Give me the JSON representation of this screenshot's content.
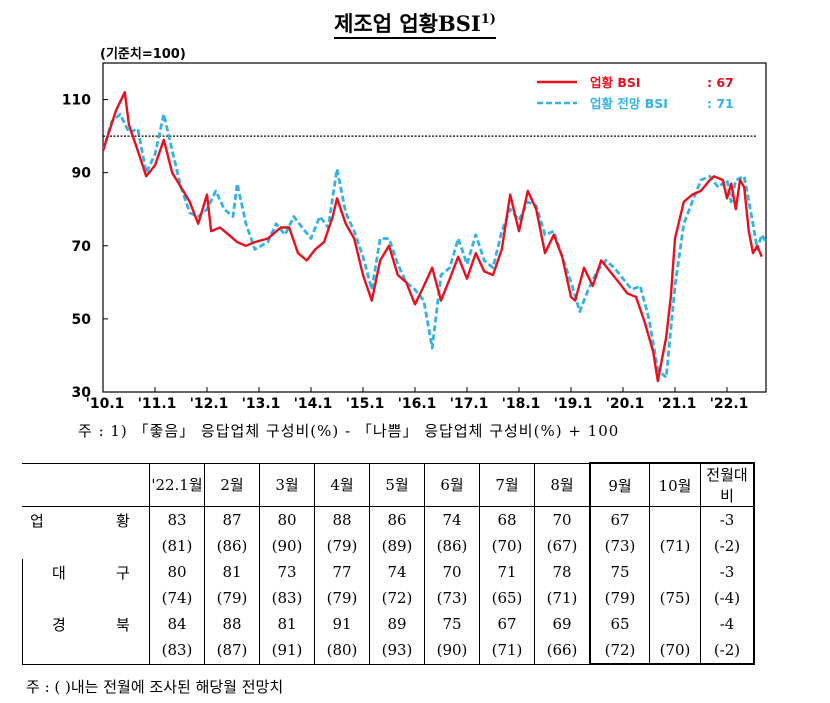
{
  "title": "제조업 업황BSI",
  "title_sup": "1)",
  "base_label": "(기준치=100)",
  "note_chart": "주 : 1) 「좋음」 응답업체 구성비(%) - 「나쁨」 응답업체 구성비(%) + 100",
  "note_table": "주 : (     )내는 전월에 조사된 해당월 전망치",
  "chart_data": {
    "type": "line",
    "ylim": [
      30,
      120
    ],
    "yticks": [
      30,
      50,
      70,
      90,
      110
    ],
    "xlim": [
      2010.0,
      2022.75
    ],
    "x_tick_labels": [
      "'10.1",
      "'11.1",
      "'12.1",
      "'13.1",
      "'14.1",
      "'15.1",
      "'16.1",
      "'17.1",
      "'18.1",
      "'19.1",
      "'20.1",
      "'21.1",
      "'22.1"
    ],
    "x_tick_positions": [
      2010,
      2011,
      2012,
      2013,
      2014,
      2015,
      2016,
      2017,
      2018,
      2019,
      2020,
      2021,
      2022
    ],
    "reference_line": 100,
    "legend_position": "top-right",
    "series": [
      {
        "name": "업황 BSI",
        "legend_value": ": 67",
        "color": "#e8101c",
        "style": "solid",
        "points": [
          [
            2010.0,
            96
          ],
          [
            2010.25,
            107
          ],
          [
            2010.42,
            112
          ],
          [
            2010.5,
            103
          ],
          [
            2010.67,
            96
          ],
          [
            2010.83,
            89
          ],
          [
            2011.0,
            92
          ],
          [
            2011.17,
            99
          ],
          [
            2011.33,
            90
          ],
          [
            2011.5,
            86
          ],
          [
            2011.67,
            82
          ],
          [
            2011.83,
            76
          ],
          [
            2012.0,
            84
          ],
          [
            2012.08,
            74
          ],
          [
            2012.25,
            75
          ],
          [
            2012.42,
            73
          ],
          [
            2012.58,
            71
          ],
          [
            2012.75,
            70
          ],
          [
            2012.92,
            71
          ],
          [
            2013.17,
            72
          ],
          [
            2013.42,
            75
          ],
          [
            2013.58,
            75
          ],
          [
            2013.75,
            68
          ],
          [
            2013.92,
            66
          ],
          [
            2014.08,
            69
          ],
          [
            2014.25,
            71
          ],
          [
            2014.42,
            78
          ],
          [
            2014.5,
            83
          ],
          [
            2014.67,
            76
          ],
          [
            2014.83,
            72
          ],
          [
            2015.0,
            62
          ],
          [
            2015.17,
            55
          ],
          [
            2015.33,
            66
          ],
          [
            2015.5,
            70
          ],
          [
            2015.67,
            62
          ],
          [
            2015.83,
            60
          ],
          [
            2016.0,
            54
          ],
          [
            2016.17,
            59
          ],
          [
            2016.33,
            64
          ],
          [
            2016.5,
            55
          ],
          [
            2016.67,
            61
          ],
          [
            2016.83,
            67
          ],
          [
            2017.0,
            61
          ],
          [
            2017.17,
            68
          ],
          [
            2017.33,
            63
          ],
          [
            2017.5,
            62
          ],
          [
            2017.67,
            69
          ],
          [
            2017.83,
            84
          ],
          [
            2018.0,
            74
          ],
          [
            2018.17,
            85
          ],
          [
            2018.33,
            80
          ],
          [
            2018.5,
            68
          ],
          [
            2018.67,
            73
          ],
          [
            2018.83,
            67
          ],
          [
            2019.0,
            56
          ],
          [
            2019.08,
            55
          ],
          [
            2019.25,
            64
          ],
          [
            2019.42,
            59
          ],
          [
            2019.58,
            66
          ],
          [
            2019.75,
            63
          ],
          [
            2019.92,
            60
          ],
          [
            2020.08,
            57
          ],
          [
            2020.25,
            56
          ],
          [
            2020.42,
            49
          ],
          [
            2020.58,
            41
          ],
          [
            2020.67,
            33
          ],
          [
            2020.83,
            45
          ],
          [
            2020.92,
            56
          ],
          [
            2021.0,
            72
          ],
          [
            2021.17,
            82
          ],
          [
            2021.33,
            84
          ],
          [
            2021.5,
            85
          ],
          [
            2021.67,
            88
          ],
          [
            2021.75,
            89
          ],
          [
            2021.92,
            88
          ],
          [
            2022.0,
            83
          ],
          [
            2022.08,
            87
          ],
          [
            2022.17,
            80
          ],
          [
            2022.25,
            88
          ],
          [
            2022.33,
            86
          ],
          [
            2022.42,
            74
          ],
          [
            2022.5,
            68
          ],
          [
            2022.58,
            70
          ],
          [
            2022.67,
            67
          ]
        ]
      },
      {
        "name": "업황 전망 BSI",
        "legend_value": ": 71",
        "color": "#35b2e5",
        "style": "dashed",
        "points": [
          [
            2010.0,
            96
          ],
          [
            2010.17,
            104
          ],
          [
            2010.33,
            106
          ],
          [
            2010.5,
            101
          ],
          [
            2010.67,
            102
          ],
          [
            2010.83,
            90
          ],
          [
            2011.0,
            95
          ],
          [
            2011.17,
            106
          ],
          [
            2011.33,
            96
          ],
          [
            2011.5,
            86
          ],
          [
            2011.67,
            79
          ],
          [
            2011.83,
            78
          ],
          [
            2012.0,
            80
          ],
          [
            2012.17,
            85
          ],
          [
            2012.33,
            80
          ],
          [
            2012.5,
            78
          ],
          [
            2012.58,
            87
          ],
          [
            2012.75,
            76
          ],
          [
            2012.92,
            69
          ],
          [
            2013.17,
            71
          ],
          [
            2013.33,
            76
          ],
          [
            2013.5,
            73
          ],
          [
            2013.67,
            78
          ],
          [
            2013.83,
            75
          ],
          [
            2014.0,
            72
          ],
          [
            2014.17,
            78
          ],
          [
            2014.33,
            75
          ],
          [
            2014.5,
            91
          ],
          [
            2014.67,
            79
          ],
          [
            2014.83,
            74
          ],
          [
            2015.0,
            67
          ],
          [
            2015.17,
            58
          ],
          [
            2015.33,
            72
          ],
          [
            2015.5,
            72
          ],
          [
            2015.67,
            65
          ],
          [
            2015.83,
            60
          ],
          [
            2016.0,
            58
          ],
          [
            2016.17,
            55
          ],
          [
            2016.33,
            42
          ],
          [
            2016.5,
            62
          ],
          [
            2016.67,
            64
          ],
          [
            2016.83,
            72
          ],
          [
            2017.0,
            65
          ],
          [
            2017.17,
            73
          ],
          [
            2017.33,
            66
          ],
          [
            2017.5,
            64
          ],
          [
            2017.67,
            74
          ],
          [
            2017.83,
            80
          ],
          [
            2018.0,
            77
          ],
          [
            2018.17,
            82
          ],
          [
            2018.33,
            81
          ],
          [
            2018.5,
            73
          ],
          [
            2018.67,
            74
          ],
          [
            2018.83,
            67
          ],
          [
            2019.0,
            60
          ],
          [
            2019.17,
            52
          ],
          [
            2019.33,
            58
          ],
          [
            2019.5,
            63
          ],
          [
            2019.67,
            66
          ],
          [
            2019.83,
            64
          ],
          [
            2020.0,
            61
          ],
          [
            2020.17,
            58
          ],
          [
            2020.33,
            59
          ],
          [
            2020.5,
            50
          ],
          [
            2020.67,
            36
          ],
          [
            2020.83,
            34
          ],
          [
            2021.0,
            59
          ],
          [
            2021.17,
            76
          ],
          [
            2021.33,
            82
          ],
          [
            2021.5,
            88
          ],
          [
            2021.67,
            89
          ],
          [
            2021.83,
            86
          ],
          [
            2022.0,
            88
          ],
          [
            2022.08,
            82
          ],
          [
            2022.17,
            88
          ],
          [
            2022.33,
            89
          ],
          [
            2022.5,
            76
          ],
          [
            2022.58,
            69
          ],
          [
            2022.67,
            73
          ],
          [
            2022.75,
            71
          ]
        ]
      }
    ]
  },
  "table": {
    "columns": [
      "'22.1월",
      "2월",
      "3월",
      "4월",
      "5월",
      "6월",
      "7월",
      "8월",
      "9월",
      "10월",
      "전월대비"
    ],
    "rows": [
      {
        "label_a": "업",
        "label_b": "황",
        "indent": false,
        "actual": [
          "83",
          "87",
          "80",
          "88",
          "86",
          "74",
          "68",
          "70",
          "67",
          "",
          "-3"
        ],
        "forecast": [
          "(81)",
          "(86)",
          "(90)",
          "(79)",
          "(89)",
          "(86)",
          "(70)",
          "(67)",
          "(73)",
          "(71)",
          "(-2)"
        ]
      },
      {
        "label_a": "대",
        "label_b": "구",
        "indent": true,
        "actual": [
          "80",
          "81",
          "73",
          "77",
          "74",
          "70",
          "71",
          "78",
          "75",
          "",
          "-3"
        ],
        "forecast": [
          "(74)",
          "(79)",
          "(83)",
          "(79)",
          "(72)",
          "(73)",
          "(65)",
          "(71)",
          "(79)",
          "(75)",
          "(-4)"
        ]
      },
      {
        "label_a": "경",
        "label_b": "북",
        "indent": true,
        "actual": [
          "84",
          "88",
          "81",
          "91",
          "89",
          "75",
          "67",
          "69",
          "65",
          "",
          "-4"
        ],
        "forecast": [
          "(83)",
          "(87)",
          "(91)",
          "(80)",
          "(93)",
          "(90)",
          "(71)",
          "(66)",
          "(72)",
          "(70)",
          "(-2)"
        ]
      }
    ]
  }
}
